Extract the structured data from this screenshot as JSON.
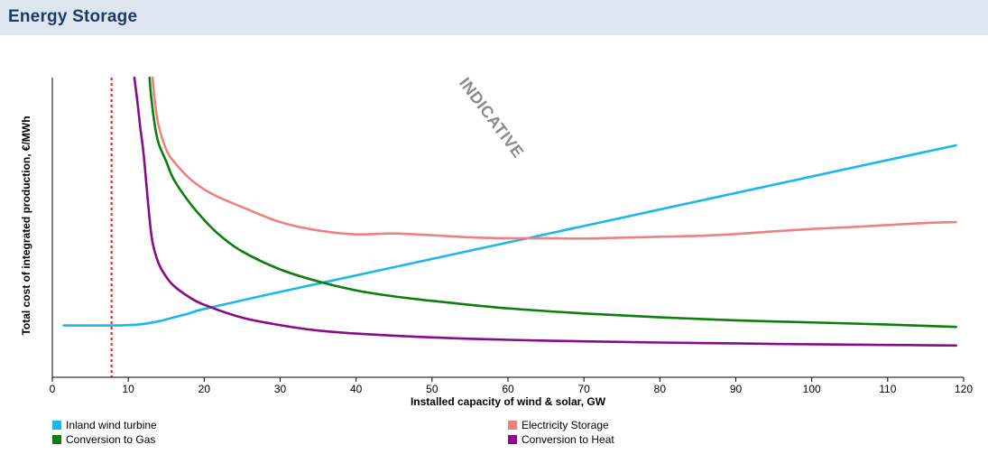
{
  "header": {
    "title": "Energy Storage"
  },
  "chart_data": {
    "type": "line",
    "xlabel": "Installed capacity of wind & solar, GW",
    "ylabel": "Total cost of integrated production, €/MWh",
    "xlim": [
      0,
      120
    ],
    "ylim": [
      0,
      100
    ],
    "xticks": [
      0,
      10,
      20,
      30,
      40,
      50,
      60,
      70,
      80,
      90,
      100,
      110,
      120
    ],
    "yticks_shown": false,
    "grid": false,
    "watermark": "INDICATIVE",
    "reference_line": {
      "x": 7.8,
      "style": "dotted",
      "color": "#e02020"
    },
    "legend_position": "bottom",
    "series": [
      {
        "name": "Inland wind turbine",
        "color": "#1ab8ea",
        "points": [
          [
            1.5,
            17.3
          ],
          [
            5,
            17.3
          ],
          [
            8,
            17.3
          ],
          [
            10,
            17.4
          ],
          [
            12,
            17.8
          ],
          [
            14,
            18.7
          ],
          [
            16,
            20.0
          ],
          [
            18,
            21.3
          ],
          [
            20,
            22.8
          ],
          [
            30,
            28.5
          ],
          [
            40,
            34.0
          ],
          [
            50,
            39.5
          ],
          [
            60,
            45.0
          ],
          [
            70,
            50.5
          ],
          [
            80,
            56.0
          ],
          [
            90,
            61.5
          ],
          [
            100,
            67.0
          ],
          [
            110,
            72.5
          ],
          [
            119,
            77.4
          ]
        ]
      },
      {
        "name": "Electricity Storage",
        "color": "#f08080",
        "points": [
          [
            13.2,
            100
          ],
          [
            13.5,
            92
          ],
          [
            14,
            84
          ],
          [
            15,
            76
          ],
          [
            16,
            72
          ],
          [
            18,
            66.5
          ],
          [
            20,
            62.7
          ],
          [
            22,
            60.0
          ],
          [
            25,
            56.8
          ],
          [
            30,
            51.8
          ],
          [
            35,
            49.0
          ],
          [
            40,
            47.7
          ],
          [
            45,
            48.0
          ],
          [
            50,
            47.4
          ],
          [
            55,
            46.7
          ],
          [
            60,
            46.4
          ],
          [
            65,
            46.4
          ],
          [
            70,
            46.3
          ],
          [
            75,
            46.6
          ],
          [
            80,
            46.9
          ],
          [
            85,
            47.2
          ],
          [
            90,
            47.8
          ],
          [
            95,
            48.7
          ],
          [
            100,
            49.5
          ],
          [
            105,
            50.1
          ],
          [
            110,
            50.8
          ],
          [
            115,
            51.5
          ],
          [
            119,
            51.8
          ]
        ]
      },
      {
        "name": "Conversion to Gas",
        "color": "#0d7d0d",
        "points": [
          [
            12.8,
            100
          ],
          [
            13,
            94
          ],
          [
            13.5,
            84
          ],
          [
            14,
            78
          ],
          [
            15,
            72
          ],
          [
            16,
            66
          ],
          [
            18,
            58.5
          ],
          [
            20,
            52.5
          ],
          [
            22,
            47.5
          ],
          [
            25,
            42.0
          ],
          [
            30,
            36.0
          ],
          [
            35,
            32.0
          ],
          [
            40,
            29.0
          ],
          [
            45,
            27.0
          ],
          [
            50,
            25.5
          ],
          [
            60,
            23.0
          ],
          [
            70,
            21.3
          ],
          [
            80,
            20.0
          ],
          [
            90,
            19.0
          ],
          [
            100,
            18.3
          ],
          [
            110,
            17.6
          ],
          [
            119,
            16.8
          ]
        ]
      },
      {
        "name": "Conversion to Heat",
        "color": "#8a0a8a",
        "points": [
          [
            10.8,
            100
          ],
          [
            11.2,
            92
          ],
          [
            11.6,
            83
          ],
          [
            12,
            75
          ],
          [
            12.4,
            64
          ],
          [
            12.8,
            53
          ],
          [
            13.2,
            45
          ],
          [
            14,
            38
          ],
          [
            15,
            33.5
          ],
          [
            16,
            30.5
          ],
          [
            18,
            26.8
          ],
          [
            20,
            24.2
          ],
          [
            25,
            19.9
          ],
          [
            30,
            17.4
          ],
          [
            35,
            15.6
          ],
          [
            40,
            14.6
          ],
          [
            50,
            13.3
          ],
          [
            60,
            12.5
          ],
          [
            70,
            12.0
          ],
          [
            80,
            11.6
          ],
          [
            90,
            11.3
          ],
          [
            100,
            11.0
          ],
          [
            110,
            10.8
          ],
          [
            119,
            10.6
          ]
        ]
      }
    ]
  }
}
